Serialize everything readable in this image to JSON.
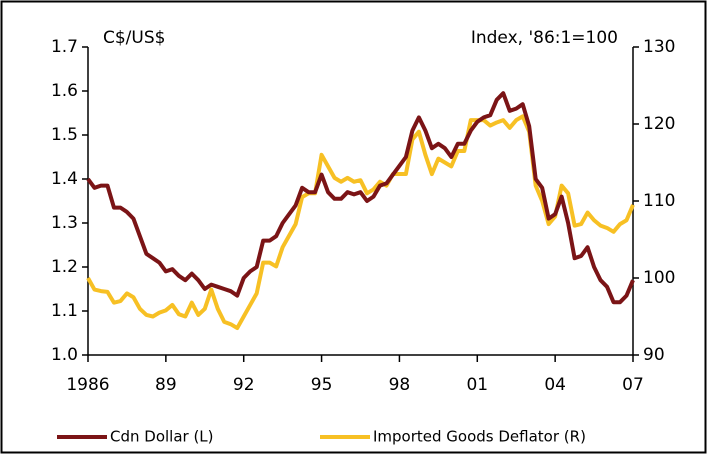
{
  "chart_data": {
    "type": "line",
    "ylabel": "C$/US$",
    "y2label": "Index, '86:1=100",
    "x": [
      1986,
      1986.25,
      1986.5,
      1986.75,
      1987,
      1987.25,
      1987.5,
      1987.75,
      1988,
      1988.25,
      1988.5,
      1988.75,
      1989,
      1989.25,
      1989.5,
      1989.75,
      1990,
      1990.25,
      1990.5,
      1990.75,
      1991,
      1991.25,
      1991.5,
      1991.75,
      1992,
      1992.25,
      1992.5,
      1992.75,
      1993,
      1993.25,
      1993.5,
      1993.75,
      1994,
      1994.25,
      1994.5,
      1994.75,
      1995,
      1995.25,
      1995.5,
      1995.75,
      1996,
      1996.25,
      1996.5,
      1996.75,
      1997,
      1997.25,
      1997.5,
      1997.75,
      1998,
      1998.25,
      1998.5,
      1998.75,
      1999,
      1999.25,
      1999.5,
      1999.75,
      2000,
      2000.25,
      2000.5,
      2000.75,
      2001,
      2001.25,
      2001.5,
      2001.75,
      2002,
      2002.25,
      2002.5,
      2002.75,
      2003,
      2003.25,
      2003.5,
      2003.75,
      2004,
      2004.25,
      2004.5,
      2004.75,
      2005,
      2005.25,
      2005.5,
      2005.75,
      2006,
      2006.25,
      2006.5,
      2006.75,
      2007
    ],
    "series": [
      {
        "name": "Cdn Dollar (L)",
        "color": "#7b1416",
        "axis": "y",
        "values": [
          1.4,
          1.38,
          1.385,
          1.385,
          1.335,
          1.335,
          1.325,
          1.31,
          1.27,
          1.23,
          1.22,
          1.21,
          1.19,
          1.195,
          1.18,
          1.17,
          1.185,
          1.17,
          1.15,
          1.16,
          1.155,
          1.15,
          1.145,
          1.135,
          1.175,
          1.19,
          1.2,
          1.26,
          1.26,
          1.27,
          1.3,
          1.32,
          1.34,
          1.38,
          1.37,
          1.37,
          1.41,
          1.37,
          1.355,
          1.355,
          1.37,
          1.365,
          1.37,
          1.35,
          1.36,
          1.385,
          1.39,
          1.41,
          1.43,
          1.45,
          1.51,
          1.54,
          1.51,
          1.47,
          1.48,
          1.47,
          1.45,
          1.48,
          1.48,
          1.51,
          1.53,
          1.54,
          1.545,
          1.58,
          1.595,
          1.555,
          1.56,
          1.57,
          1.52,
          1.4,
          1.38,
          1.31,
          1.32,
          1.36,
          1.3,
          1.22,
          1.225,
          1.245,
          1.2,
          1.17,
          1.155,
          1.12,
          1.12,
          1.135,
          1.17
        ]
      },
      {
        "name": "Imported Goods Deflator (R)",
        "color": "#f7c024",
        "axis": "y2",
        "values": [
          100,
          98.5,
          98.3,
          98.2,
          96.8,
          97,
          98,
          97.5,
          96,
          95.2,
          95,
          95.5,
          95.8,
          96.5,
          95.3,
          95,
          96.8,
          95.2,
          96,
          98.5,
          96,
          94.3,
          94,
          93.5,
          95,
          96.5,
          98,
          102,
          102,
          101.5,
          104,
          105.5,
          107,
          110.5,
          111,
          111,
          116,
          114.5,
          113,
          112.5,
          113,
          112.5,
          112.7,
          111,
          111.5,
          112.5,
          112,
          113.5,
          113.5,
          113.5,
          118,
          119,
          116,
          113.5,
          115.5,
          115,
          114.5,
          116.5,
          116.5,
          120.5,
          120.5,
          120.5,
          119.8,
          120.2,
          120.5,
          119.5,
          120.5,
          121,
          119,
          112,
          110,
          107,
          108,
          112,
          111,
          106.8,
          107,
          108.5,
          107.5,
          106.8,
          106.5,
          106,
          107,
          107.5,
          109.5
        ]
      }
    ],
    "xlim": [
      1986,
      2007
    ],
    "xticks": [
      1986,
      {
        "value": 1989,
        "label": "89"
      },
      {
        "value": 1992,
        "label": "92"
      },
      {
        "value": 1995,
        "label": "95"
      },
      {
        "value": 1998,
        "label": "98"
      },
      {
        "value": 2001,
        "label": "01"
      },
      {
        "value": 2004,
        "label": "04"
      },
      {
        "value": 2007,
        "label": "07"
      }
    ],
    "ylim": [
      1.0,
      1.7
    ],
    "yticks": [
      {
        "value": 1,
        "label": "1.0"
      },
      1.1,
      1.2,
      1.3,
      1.4,
      1.5,
      1.6,
      1.7
    ],
    "y2lim": [
      90,
      130
    ],
    "y2ticks": [
      90,
      100,
      110,
      120,
      130
    ],
    "legend": "bottom"
  }
}
